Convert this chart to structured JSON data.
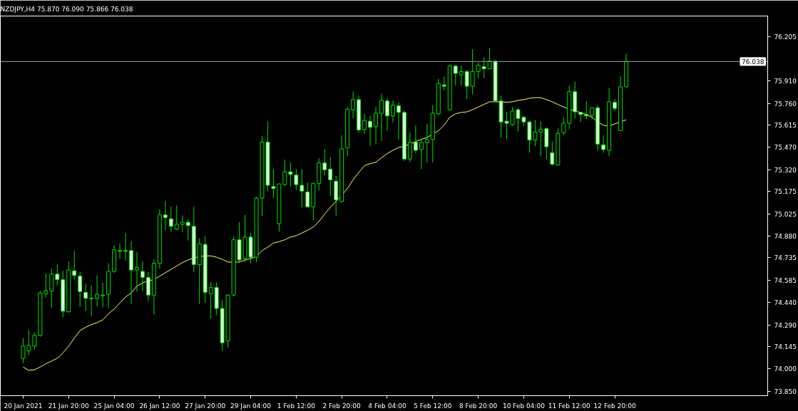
{
  "chart_data": {
    "type": "candlestick",
    "title": "NZDJPY,H4  75.870 76.090 75.866 76.038",
    "categories": [
      "20 Jan 2021",
      null,
      null,
      null,
      null,
      null,
      null,
      null,
      "21 Jan 20:00",
      null,
      null,
      null,
      null,
      null,
      null,
      null,
      "25 Jan 04:00",
      null,
      null,
      null,
      null,
      null,
      null,
      null,
      "26 Jan 12:00",
      null,
      null,
      null,
      null,
      null,
      null,
      null,
      "27 Jan 20:00",
      null,
      null,
      null,
      null,
      null,
      null,
      null,
      "29 Jan 04:00",
      null,
      null,
      null,
      null,
      null,
      null,
      null,
      "1 Feb 12:00",
      null,
      null,
      null,
      null,
      null,
      null,
      null,
      "2 Feb 20:00",
      null,
      null,
      null,
      null,
      null,
      null,
      null,
      "4 Feb 04:00",
      null,
      null,
      null,
      null,
      null,
      null,
      null,
      "5 Feb 12:00",
      null,
      null,
      null,
      null,
      null,
      null,
      null,
      "8 Feb 20:00",
      null,
      null,
      null,
      null,
      null,
      null,
      null,
      "10 Feb 04:00",
      null,
      null,
      null,
      null,
      null,
      null,
      null,
      "11 Feb 12:00",
      null,
      null,
      null,
      null,
      null,
      null,
      null,
      "12 Feb 20:00",
      null,
      null
    ],
    "series": [
      {
        "type": "line",
        "color": "#ffff66",
        "values": [
          74.01,
          73.988,
          73.992,
          74.01,
          74.032,
          74.05,
          74.068,
          74.104,
          74.149,
          74.202,
          74.252,
          74.274,
          74.292,
          74.305,
          74.323,
          74.363,
          74.395,
          74.435,
          74.475,
          74.502,
          74.547,
          74.569,
          74.582,
          74.591,
          74.614,
          74.636,
          74.658,
          74.681,
          74.703,
          74.721,
          74.734,
          74.743,
          74.748,
          74.748,
          74.739,
          74.725,
          74.707,
          74.707,
          74.707,
          74.721,
          74.73,
          74.743,
          74.783,
          74.806,
          74.833,
          74.842,
          74.855,
          74.873,
          74.882,
          74.9,
          74.918,
          74.94,
          74.976,
          75.025,
          75.07,
          75.11,
          75.15,
          75.195,
          75.253,
          75.302,
          75.347,
          75.36,
          75.369,
          75.4,
          75.427,
          75.449,
          75.467,
          75.476,
          75.49,
          75.508,
          75.521,
          75.534,
          75.557,
          75.579,
          75.615,
          75.668,
          75.691,
          75.7,
          75.704,
          75.718,
          75.736,
          75.753,
          75.771,
          75.771,
          75.771,
          75.767,
          75.771,
          75.78,
          75.785,
          75.794,
          75.798,
          75.798,
          75.785,
          75.771,
          75.753,
          75.736,
          75.722,
          75.709,
          75.7,
          75.686,
          75.668,
          75.637,
          75.615,
          75.61,
          75.624,
          75.637,
          75.651
        ]
      },
      {
        "color": "#00e000",
        "ohlc": [
          [
            74.068,
            74.202,
            74.037,
            74.149
          ],
          [
            74.117,
            74.256,
            74.091,
            74.153
          ],
          [
            74.149,
            74.238,
            74.126,
            74.22
          ],
          [
            74.22,
            74.515,
            74.211,
            74.502
          ],
          [
            74.497,
            74.631,
            74.471,
            74.515
          ],
          [
            74.515,
            74.663,
            74.403,
            74.627
          ],
          [
            74.627,
            74.694,
            74.551,
            74.591
          ],
          [
            74.591,
            74.649,
            74.341,
            74.381
          ],
          [
            74.377,
            74.712,
            74.372,
            74.654
          ],
          [
            74.649,
            74.783,
            74.591,
            74.618
          ],
          [
            74.614,
            74.64,
            74.408,
            74.511
          ],
          [
            74.506,
            74.564,
            74.381,
            74.466
          ],
          [
            74.466,
            74.551,
            74.345,
            74.464
          ],
          [
            74.466,
            74.618,
            74.412,
            74.493
          ],
          [
            74.484,
            74.569,
            74.408,
            74.488
          ],
          [
            74.493,
            74.699,
            74.403,
            74.645
          ],
          [
            74.645,
            74.819,
            74.636,
            74.788
          ],
          [
            74.783,
            74.828,
            74.73,
            74.779
          ],
          [
            74.783,
            74.9,
            74.716,
            74.779
          ],
          [
            74.783,
            74.846,
            74.43,
            74.654
          ],
          [
            74.654,
            74.774,
            74.511,
            74.672
          ],
          [
            74.645,
            74.712,
            74.515,
            74.605
          ],
          [
            74.605,
            74.64,
            74.448,
            74.488
          ],
          [
            74.488,
            74.725,
            74.359,
            74.699
          ],
          [
            74.699,
            75.056,
            74.663,
            75.02
          ],
          [
            75.02,
            75.114,
            74.918,
            75.002
          ],
          [
            74.994,
            75.074,
            74.909,
            74.944
          ],
          [
            74.926,
            75.083,
            74.918,
            74.958
          ],
          [
            74.958,
            75.016,
            74.904,
            74.971
          ],
          [
            74.971,
            74.989,
            74.85,
            74.949
          ],
          [
            74.944,
            75.074,
            74.64,
            74.69
          ],
          [
            74.69,
            74.864,
            74.43,
            74.828
          ],
          [
            74.824,
            74.877,
            74.435,
            74.506
          ],
          [
            74.497,
            74.573,
            74.332,
            74.538
          ],
          [
            74.538,
            74.573,
            74.354,
            74.399
          ],
          [
            74.399,
            74.453,
            74.117,
            74.171
          ],
          [
            74.184,
            74.493,
            74.14,
            74.488
          ],
          [
            74.488,
            74.877,
            74.479,
            74.855
          ],
          [
            74.855,
            74.971,
            74.707,
            74.721
          ],
          [
            74.73,
            75.02,
            74.707,
            74.873
          ],
          [
            74.873,
            74.9,
            74.699,
            74.739
          ],
          [
            74.739,
            75.141,
            74.707,
            75.132
          ],
          [
            75.132,
            75.543,
            75.011,
            75.503
          ],
          [
            75.503,
            75.642,
            75.177,
            75.217
          ],
          [
            75.208,
            75.324,
            75.132,
            75.195
          ],
          [
            74.962,
            75.226,
            74.909,
            75.226
          ],
          [
            75.221,
            75.387,
            75.213,
            75.306
          ],
          [
            75.306,
            75.369,
            75.208,
            75.289
          ],
          [
            75.284,
            75.324,
            75.186,
            75.221
          ],
          [
            75.217,
            75.324,
            75.07,
            75.177
          ],
          [
            75.172,
            75.235,
            75.065,
            75.074
          ],
          [
            75.074,
            75.23,
            74.985,
            75.23
          ],
          [
            75.23,
            75.396,
            75.181,
            75.365
          ],
          [
            75.365,
            75.458,
            75.28,
            75.32
          ],
          [
            75.324,
            75.405,
            75.146,
            75.253
          ],
          [
            75.244,
            75.28,
            75.011,
            75.119
          ],
          [
            75.11,
            75.548,
            75.101,
            75.458
          ],
          [
            75.467,
            75.736,
            75.409,
            75.722
          ],
          [
            75.718,
            75.838,
            75.66,
            75.785
          ],
          [
            75.785,
            75.812,
            75.566,
            75.584
          ],
          [
            75.588,
            75.691,
            75.557,
            75.646
          ],
          [
            75.642,
            75.677,
            75.476,
            75.601
          ],
          [
            75.606,
            75.736,
            75.49,
            75.695
          ],
          [
            75.695,
            75.825,
            75.512,
            75.78
          ],
          [
            75.776,
            75.794,
            75.579,
            75.677
          ],
          [
            75.677,
            75.78,
            75.633,
            75.749
          ],
          [
            75.744,
            75.767,
            75.521,
            75.7
          ],
          [
            75.7,
            75.713,
            75.378,
            75.391
          ],
          [
            75.391,
            75.566,
            75.369,
            75.503
          ],
          [
            75.503,
            75.615,
            75.432,
            75.449
          ],
          [
            75.454,
            75.521,
            75.324,
            75.499
          ],
          [
            75.499,
            75.624,
            75.369,
            75.521
          ],
          [
            75.521,
            75.749,
            75.369,
            75.695
          ],
          [
            75.691,
            75.923,
            75.682,
            75.892
          ],
          [
            75.883,
            75.937,
            75.847,
            75.874
          ],
          [
            75.718,
            76.017,
            75.713,
            76.008
          ],
          [
            76.008,
            76.013,
            75.879,
            75.959
          ],
          [
            75.95,
            76.013,
            75.879,
            75.972
          ],
          [
            75.972,
            75.981,
            75.789,
            75.874
          ],
          [
            75.874,
            76.12,
            75.82,
            75.972
          ],
          [
            75.972,
            76.031,
            75.928,
            76.013
          ],
          [
            76.004,
            76.066,
            75.928,
            75.99
          ],
          [
            75.99,
            76.129,
            75.99,
            76.04
          ],
          [
            76.04,
            76.048,
            75.771,
            75.776
          ],
          [
            75.776,
            75.812,
            75.534,
            75.637
          ],
          [
            75.642,
            75.704,
            75.521,
            75.628
          ],
          [
            75.619,
            75.736,
            75.61,
            75.709
          ],
          [
            75.718,
            75.727,
            75.575,
            75.66
          ],
          [
            75.668,
            75.677,
            75.61,
            75.637
          ],
          [
            75.637,
            75.646,
            75.432,
            75.517
          ],
          [
            75.517,
            75.651,
            75.476,
            75.57
          ],
          [
            75.57,
            75.642,
            75.409,
            75.588
          ],
          [
            75.593,
            75.601,
            75.387,
            75.472
          ],
          [
            75.432,
            75.508,
            75.347,
            75.356
          ],
          [
            75.351,
            75.593,
            75.347,
            75.561
          ],
          [
            75.566,
            75.668,
            75.548,
            75.628
          ],
          [
            75.628,
            75.879,
            75.588,
            75.838
          ],
          [
            75.838,
            75.905,
            75.66,
            75.704
          ],
          [
            75.7,
            75.704,
            75.637,
            75.686
          ],
          [
            75.686,
            75.776,
            75.655,
            75.677
          ],
          [
            75.682,
            75.736,
            75.655,
            75.731
          ],
          [
            75.731,
            75.744,
            75.445,
            75.49
          ],
          [
            75.485,
            75.548,
            75.432,
            75.454
          ],
          [
            75.449,
            75.861,
            75.409,
            75.771
          ],
          [
            75.767,
            75.789,
            75.709,
            75.727
          ],
          [
            75.579,
            75.941,
            75.575,
            75.87
          ],
          [
            75.87,
            76.09,
            75.866,
            76.038
          ]
        ]
      }
    ],
    "ylim": [
      73.82,
      76.34
    ],
    "yticks": [
      {
        "value": 76.205,
        "label": "76.205"
      },
      {
        "value": 75.91,
        "label": "75.910"
      },
      {
        "value": 75.76,
        "label": "75.760"
      },
      {
        "value": 75.615,
        "label": "75.615"
      },
      {
        "value": 75.47,
        "label": "75.470"
      },
      {
        "value": 75.32,
        "label": "75.320"
      },
      {
        "value": 75.175,
        "label": "75.175"
      },
      {
        "value": 75.025,
        "label": "75.025"
      },
      {
        "value": 74.88,
        "label": "74.880"
      },
      {
        "value": 74.735,
        "label": "74.735"
      },
      {
        "value": 74.585,
        "label": "74.585"
      },
      {
        "value": 74.44,
        "label": "74.440"
      },
      {
        "value": 74.29,
        "label": "74.290"
      },
      {
        "value": 74.145,
        "label": "74.145"
      },
      {
        "value": 74.0,
        "label": "74.000"
      },
      {
        "value": 73.85,
        "label": "73.850"
      }
    ],
    "ref_lines": [
      {
        "axis": "y",
        "value": 76.038,
        "label": "76.038",
        "color": "#a0a0a0"
      }
    ],
    "grid": false
  }
}
